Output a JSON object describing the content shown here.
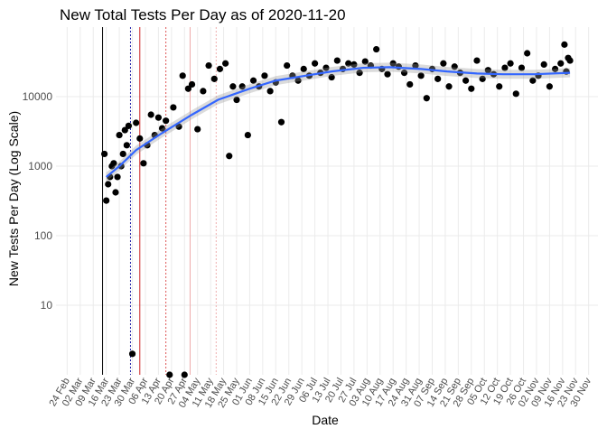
{
  "chart_data": {
    "type": "scatter",
    "title": "New Total Tests Per Day as of 2020-11-20",
    "xlabel": "Date",
    "ylabel": "New Tests Per Day (Log Scale)",
    "log_y": true,
    "grid": true,
    "ylim": [
      1,
      100000
    ],
    "yticks": [
      10,
      100,
      1000,
      10000
    ],
    "xlim": [
      "2020-02-18",
      "2020-12-05"
    ],
    "xticks": [
      {
        "value": "2020-02-24",
        "label": "24 Feb"
      },
      {
        "value": "2020-03-02",
        "label": "02 Mar"
      },
      {
        "value": "2020-03-09",
        "label": "09 Mar"
      },
      {
        "value": "2020-03-16",
        "label": "16 Mar"
      },
      {
        "value": "2020-03-23",
        "label": "23 Mar"
      },
      {
        "value": "2020-03-30",
        "label": "30 Mar"
      },
      {
        "value": "2020-04-06",
        "label": "06 Apr"
      },
      {
        "value": "2020-04-13",
        "label": "13 Apr"
      },
      {
        "value": "2020-04-20",
        "label": "20 Apr"
      },
      {
        "value": "2020-04-27",
        "label": "27 Apr"
      },
      {
        "value": "2020-05-04",
        "label": "04 May"
      },
      {
        "value": "2020-05-11",
        "label": "11 May"
      },
      {
        "value": "2020-05-18",
        "label": "18 May"
      },
      {
        "value": "2020-05-25",
        "label": "25 May"
      },
      {
        "value": "2020-06-01",
        "label": "01 Jun"
      },
      {
        "value": "2020-06-08",
        "label": "08 Jun"
      },
      {
        "value": "2020-06-15",
        "label": "15 Jun"
      },
      {
        "value": "2020-06-22",
        "label": "22 Jun"
      },
      {
        "value": "2020-06-29",
        "label": "29 Jun"
      },
      {
        "value": "2020-07-06",
        "label": "06 Jul"
      },
      {
        "value": "2020-07-13",
        "label": "13 Jul"
      },
      {
        "value": "2020-07-20",
        "label": "20 Jul"
      },
      {
        "value": "2020-07-27",
        "label": "27 Jul"
      },
      {
        "value": "2020-08-03",
        "label": "03 Aug"
      },
      {
        "value": "2020-08-10",
        "label": "10 Aug"
      },
      {
        "value": "2020-08-17",
        "label": "17 Aug"
      },
      {
        "value": "2020-08-24",
        "label": "24 Aug"
      },
      {
        "value": "2020-08-31",
        "label": "31 Aug"
      },
      {
        "value": "2020-09-07",
        "label": "07 Sep"
      },
      {
        "value": "2020-09-14",
        "label": "14 Sep"
      },
      {
        "value": "2020-09-21",
        "label": "21 Sep"
      },
      {
        "value": "2020-09-28",
        "label": "28 Sep"
      },
      {
        "value": "2020-10-05",
        "label": "05 Oct"
      },
      {
        "value": "2020-10-12",
        "label": "12 Oct"
      },
      {
        "value": "2020-10-19",
        "label": "19 Oct"
      },
      {
        "value": "2020-10-26",
        "label": "26 Oct"
      },
      {
        "value": "2020-11-02",
        "label": "02 Nov"
      },
      {
        "value": "2020-11-09",
        "label": "09 Nov"
      },
      {
        "value": "2020-11-16",
        "label": "16 Nov"
      },
      {
        "value": "2020-11-23",
        "label": "23 Nov"
      },
      {
        "value": "2020-11-30",
        "label": "30 Nov"
      }
    ],
    "vlines": [
      {
        "x": "2020-03-14",
        "color": "#000000",
        "dashed": false
      },
      {
        "x": "2020-03-29",
        "color": "#2222aa",
        "dashed": true
      },
      {
        "x": "2020-04-03",
        "color": "#cc2222",
        "dashed": false
      },
      {
        "x": "2020-04-17",
        "color": "#dd5555",
        "dashed": true
      },
      {
        "x": "2020-04-30",
        "color": "#eeaaaa",
        "dashed": false
      },
      {
        "x": "2020-05-14",
        "color": "#f0b0b0",
        "dashed": true
      }
    ],
    "series": [
      {
        "color": "#000000",
        "x": [
          "2020-03-15",
          "2020-03-16",
          "2020-03-17",
          "2020-03-18",
          "2020-03-19",
          "2020-03-20",
          "2020-03-21",
          "2020-03-22",
          "2020-03-23",
          "2020-03-24",
          "2020-03-25",
          "2020-03-26",
          "2020-03-27",
          "2020-03-28",
          "2020-03-30",
          "2020-04-01",
          "2020-04-03",
          "2020-04-05",
          "2020-04-07",
          "2020-04-09",
          "2020-04-11",
          "2020-04-13",
          "2020-04-15",
          "2020-04-17",
          "2020-04-19",
          "2020-04-21",
          "2020-04-24",
          "2020-04-26",
          "2020-04-27",
          "2020-04-29",
          "2020-05-01",
          "2020-05-04",
          "2020-05-07",
          "2020-05-10",
          "2020-05-13",
          "2020-05-16",
          "2020-05-19",
          "2020-05-21",
          "2020-05-23",
          "2020-05-25",
          "2020-05-28",
          "2020-05-31",
          "2020-06-03",
          "2020-06-06",
          "2020-06-09",
          "2020-06-12",
          "2020-06-15",
          "2020-06-18",
          "2020-06-21",
          "2020-06-24",
          "2020-06-27",
          "2020-06-30",
          "2020-07-03",
          "2020-07-06",
          "2020-07-09",
          "2020-07-12",
          "2020-07-15",
          "2020-07-18",
          "2020-07-21",
          "2020-07-24",
          "2020-07-27",
          "2020-07-30",
          "2020-08-02",
          "2020-08-05",
          "2020-08-08",
          "2020-08-11",
          "2020-08-14",
          "2020-08-17",
          "2020-08-20",
          "2020-08-23",
          "2020-08-26",
          "2020-08-29",
          "2020-09-01",
          "2020-09-04",
          "2020-09-07",
          "2020-09-10",
          "2020-09-13",
          "2020-09-16",
          "2020-09-19",
          "2020-09-22",
          "2020-09-25",
          "2020-09-28",
          "2020-10-01",
          "2020-10-04",
          "2020-10-07",
          "2020-10-10",
          "2020-10-13",
          "2020-10-16",
          "2020-10-19",
          "2020-10-22",
          "2020-10-25",
          "2020-10-28",
          "2020-10-31",
          "2020-11-03",
          "2020-11-06",
          "2020-11-09",
          "2020-11-12",
          "2020-11-15",
          "2020-11-17",
          "2020-11-18",
          "2020-11-19",
          "2020-11-20"
        ],
        "values": [
          1500,
          320,
          550,
          700,
          1000,
          1100,
          420,
          700,
          2800,
          1000,
          1500,
          3300,
          2000,
          3800,
          2,
          4200,
          2500,
          1100,
          2000,
          5500,
          2800,
          5000,
          3500,
          4500,
          1,
          7000,
          3700,
          20000,
          1,
          13000,
          15000,
          3400,
          12000,
          28000,
          18000,
          25000,
          30000,
          1400,
          14000,
          9000,
          14000,
          2800,
          17000,
          14000,
          20000,
          12000,
          16000,
          4300,
          28000,
          20000,
          17000,
          25000,
          20000,
          30000,
          22000,
          26000,
          19000,
          33000,
          25000,
          30000,
          29000,
          22000,
          32000,
          28000,
          48000,
          25000,
          21000,
          30000,
          27000,
          22000,
          15000,
          28000,
          20000,
          9500,
          25000,
          18000,
          30000,
          14000,
          27000,
          22000,
          17000,
          13000,
          33000,
          18000,
          24000,
          21000,
          14000,
          26000,
          30000,
          11000,
          26000,
          42000,
          17000,
          20000,
          29000,
          14000,
          25000,
          30000,
          56000,
          23000,
          36000,
          33000
        ]
      },
      {
        "color": "#3366ff",
        "x": [
          "2020-03-16",
          "2020-03-23",
          "2020-04-01",
          "2020-04-15",
          "2020-05-01",
          "2020-05-15",
          "2020-06-01",
          "2020-06-15",
          "2020-07-01",
          "2020-07-15",
          "2020-08-01",
          "2020-08-15",
          "2020-09-01",
          "2020-09-15",
          "2020-10-01",
          "2020-10-15",
          "2020-11-01",
          "2020-11-20"
        ],
        "values": [
          700,
          1000,
          1700,
          3000,
          5500,
          9000,
          13000,
          17000,
          20000,
          23000,
          26000,
          26500,
          25000,
          23000,
          21500,
          21000,
          21000,
          22000
        ]
      }
    ]
  }
}
